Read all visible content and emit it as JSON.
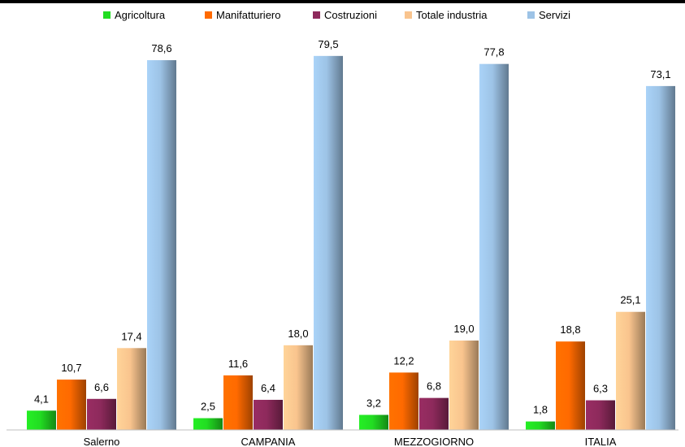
{
  "chart_data": {
    "type": "bar",
    "categories": [
      "Salerno",
      "CAMPANIA",
      "MEZZOGIORNO",
      "ITALIA"
    ],
    "series": [
      {
        "name": "Agricoltura",
        "values": [
          4.1,
          2.5,
          3.2,
          1.8
        ],
        "color": "#22dd22"
      },
      {
        "name": "Manifatturiero",
        "values": [
          10.7,
          11.6,
          12.2,
          18.8
        ],
        "color": "#ff6a00"
      },
      {
        "name": "Costruzioni",
        "values": [
          6.6,
          6.4,
          6.8,
          6.3
        ],
        "color": "#8e2a5c"
      },
      {
        "name": "Totale industria",
        "values": [
          17.4,
          18.0,
          19.0,
          25.1
        ],
        "color": "#f9c48e"
      },
      {
        "name": "Servizi",
        "values": [
          78.6,
          79.5,
          77.8,
          73.1
        ],
        "color": "#9dc3e6"
      }
    ],
    "value_labels": [
      [
        "4,1",
        "2,5",
        "3,2",
        "1,8"
      ],
      [
        "10,7",
        "11,6",
        "12,2",
        "18,8"
      ],
      [
        "6,6",
        "6,4",
        "6,8",
        "6,3"
      ],
      [
        "17,4",
        "18,0",
        "19,0",
        "25,1"
      ],
      [
        "78,6",
        "79,5",
        "77,8",
        "73,1"
      ]
    ],
    "ylim": [
      0,
      85
    ],
    "grid": false,
    "legend_position": "top"
  }
}
